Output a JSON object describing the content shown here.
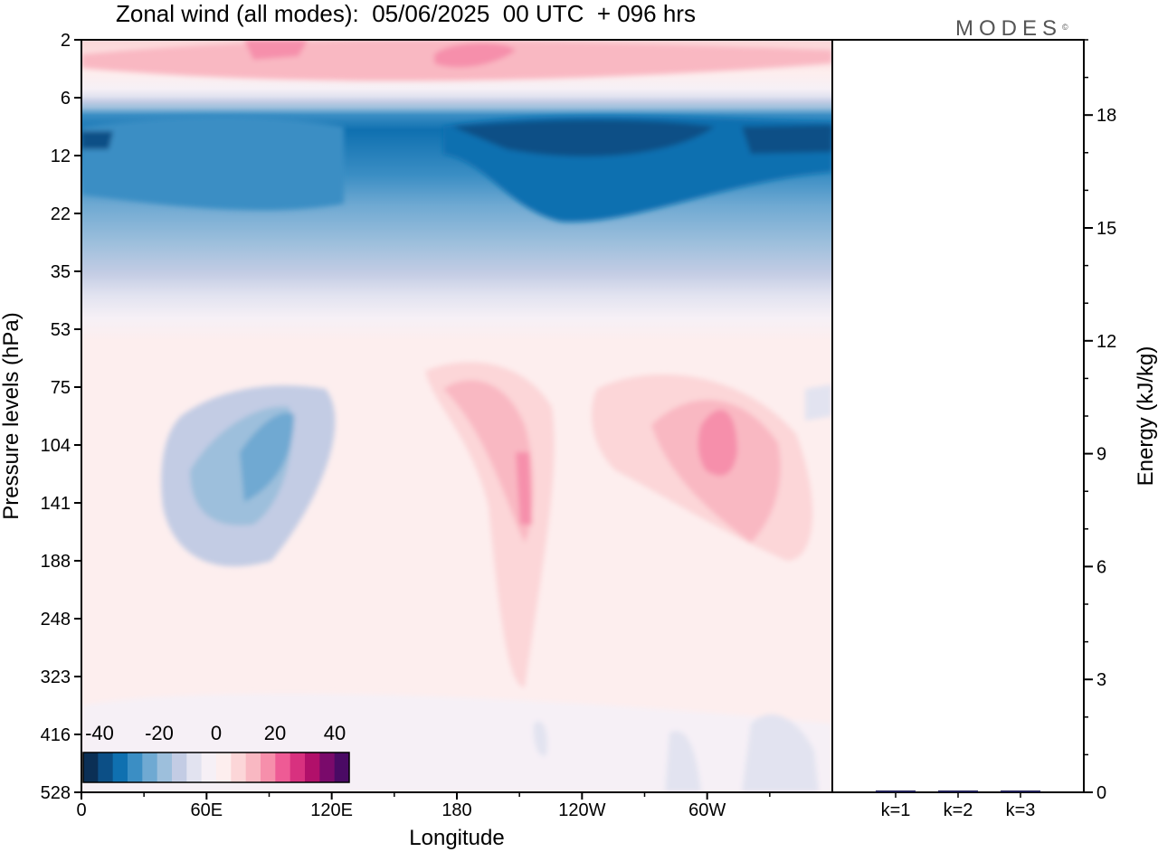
{
  "title": "Zonal wind (all modes):  05/06/2025  00 UTC  + 096 hrs",
  "brand": {
    "text": "MODES",
    "mark": "©"
  },
  "colorbar": {
    "labels": [
      "-40",
      "-20",
      "0",
      "20",
      "40"
    ],
    "colors": [
      "#0b2f55",
      "#0c4f86",
      "#0f70b0",
      "#3b8ec4",
      "#6fa9d2",
      "#9dbfdc",
      "#c3cce4",
      "#e2e3f0",
      "#f6f0f6",
      "#fdeeee",
      "#fcd6d8",
      "#f9b8c2",
      "#f68fab",
      "#ee5b95",
      "#d8317f",
      "#b1106a",
      "#7a0a6b",
      "#4a0a64"
    ]
  },
  "chart_data": [
    {
      "type": "heatmap",
      "title": "Zonal wind (all modes):  05/06/2025  00 UTC  + 096 hrs",
      "xlabel": "Longitude",
      "ylabel": "Pressure levels (hPa)",
      "x_ticks": [
        "0",
        "60E",
        "120E",
        "180",
        "120W",
        "60W"
      ],
      "y_ticks": [
        "2",
        "6",
        "12",
        "22",
        "35",
        "53",
        "75",
        "104",
        "141",
        "188",
        "248",
        "323",
        "416",
        "528"
      ],
      "color_scale": {
        "min": -40,
        "max": 40,
        "ticks": [
          "-40",
          "-20",
          "0",
          "20",
          "40"
        ]
      },
      "features": [
        {
          "level_band": "8-22 hPa",
          "lon_range": "0-360",
          "value": -25
        },
        {
          "level_band": "8-12 hPa",
          "lon_range": "180-120W",
          "value": -35
        },
        {
          "level_band": "2-4 hPa",
          "lon_range": "180-150W",
          "value": 20
        },
        {
          "level_band": "95-160 hPa",
          "lon_range": "75E-95E",
          "value": -20
        },
        {
          "level_band": "95-130 hPa",
          "lon_range": "75W-65W",
          "value": 20
        },
        {
          "level_band": "70-300 hPa",
          "lon_range": "165W-150W",
          "value": 15
        }
      ]
    },
    {
      "type": "bar",
      "categories": [
        "k=1",
        "k=2",
        "k=3"
      ],
      "values": [
        0.03,
        0.03,
        0.02
      ],
      "ylabel": "Energy (kJ/kg)",
      "ylim": [
        0,
        20
      ],
      "y_ticks": [
        "0",
        "3",
        "6",
        "9",
        "12",
        "15",
        "18"
      ]
    }
  ]
}
